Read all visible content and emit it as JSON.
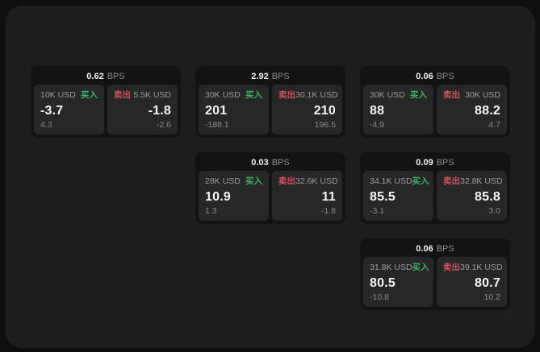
{
  "labels": {
    "buy": "买入",
    "sell": "卖出",
    "bps_suffix": "BPS"
  },
  "colors": {
    "buy_green": "#3fae6e",
    "sell_red": "#cf5362",
    "page_bg": "#0f0f0f",
    "panel_bg": "#1d1d1d",
    "card_bg": "#131313",
    "tile_bg": "#272727"
  },
  "cards": [
    {
      "bps": "0.62",
      "grid": {
        "row": 1,
        "col": 1
      },
      "buy": {
        "notional": "10K USD",
        "value": "-3.7",
        "sub": "4.3"
      },
      "sell": {
        "notional": "5.5K USD",
        "value": "-1.8",
        "sub": "-2.6"
      }
    },
    {
      "bps": "2.92",
      "grid": {
        "row": 1,
        "col": 2
      },
      "buy": {
        "notional": "30K USD",
        "value": "201",
        "sub": "-188.1"
      },
      "sell": {
        "notional": "30.1K USD",
        "value": "210",
        "sub": "196.5"
      }
    },
    {
      "bps": "0.06",
      "grid": {
        "row": 1,
        "col": 3
      },
      "buy": {
        "notional": "30K USD",
        "value": "88",
        "sub": "-4.9"
      },
      "sell": {
        "notional": "30K USD",
        "value": "88.2",
        "sub": "4.7"
      }
    },
    {
      "bps": "0.03",
      "grid": {
        "row": 2,
        "col": 2
      },
      "buy": {
        "notional": "28K USD",
        "value": "10.9",
        "sub": "1.3"
      },
      "sell": {
        "notional": "32.6K USD",
        "value": "11",
        "sub": "-1.8"
      }
    },
    {
      "bps": "0.09",
      "grid": {
        "row": 2,
        "col": 3
      },
      "buy": {
        "notional": "34.1K USD",
        "value": "85.5",
        "sub": "-3.1"
      },
      "sell": {
        "notional": "32.8K USD",
        "value": "85.8",
        "sub": "3.0"
      }
    },
    {
      "bps": "0.06",
      "grid": {
        "row": 3,
        "col": 3
      },
      "buy": {
        "notional": "31.8K USD",
        "value": "80.5",
        "sub": "-10.8"
      },
      "sell": {
        "notional": "39.1K USD",
        "value": "80.7",
        "sub": "10.2"
      }
    }
  ]
}
